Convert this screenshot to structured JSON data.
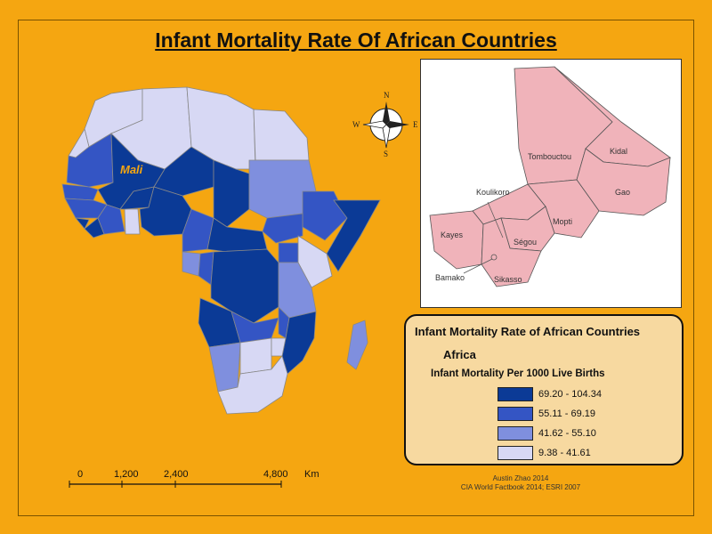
{
  "title": "Infant Mortality Rate Of African Countries",
  "highlight_label": "Mali",
  "colors": {
    "background": "#f5a611",
    "class_1": "#0b3a96",
    "class_2": "#3455c4",
    "class_3": "#7f8fde",
    "class_4": "#d7d8f4",
    "inset_fill": "#f0b3ba"
  },
  "inset": {
    "regions": [
      "Tombouctou",
      "Kidal",
      "Gao",
      "Koulikoro",
      "Mopti",
      "Kayes",
      "Ségou",
      "Bamako",
      "Sikasso"
    ]
  },
  "compass": {
    "n": "N",
    "s": "S",
    "e": "E",
    "w": "W"
  },
  "legend": {
    "title": "Infant Mortality Rate of African Countries",
    "subtitle": "Africa",
    "unit": "Infant Mortality Per 1000 Live Births",
    "classes": [
      {
        "label": "69.20 - 104.34",
        "color": "#0b3a96"
      },
      {
        "label": "55.11 - 69.19",
        "color": "#3455c4"
      },
      {
        "label": "41.62 - 55.10",
        "color": "#7f8fde"
      },
      {
        "label": "9.38 - 41.61",
        "color": "#d7d8f4"
      }
    ]
  },
  "scale_bar": {
    "labels": [
      "0",
      "1,200",
      "2,400",
      "4,800"
    ],
    "unit": "Km"
  },
  "credits": [
    "Austin Zhao 2014",
    "CIA World Factbook 2014; ESRI 2007"
  ]
}
